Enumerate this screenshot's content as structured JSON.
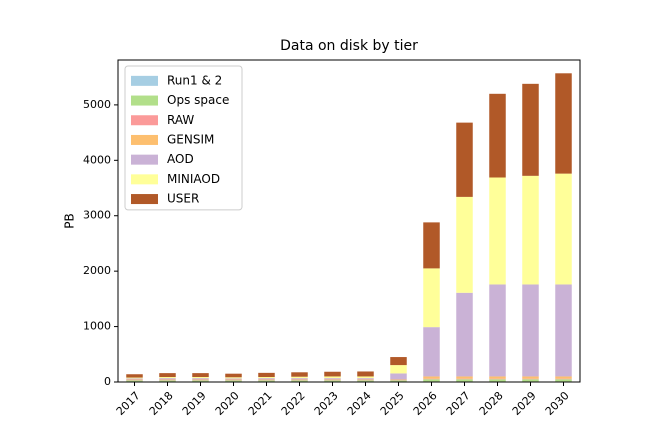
{
  "chart_data": {
    "type": "stacked_bar",
    "title": "Data on disk by tier",
    "ylabel": "PB",
    "categories": [
      "2017",
      "2018",
      "2019",
      "2020",
      "2021",
      "2022",
      "2023",
      "2024",
      "2025",
      "2026",
      "2027",
      "2028",
      "2029",
      "2030"
    ],
    "series": [
      {
        "name": "Run1 & 2",
        "color": "#a6cee3",
        "values": [
          10,
          10,
          10,
          10,
          10,
          10,
          10,
          10,
          10,
          10,
          10,
          10,
          10,
          10
        ]
      },
      {
        "name": "Ops space",
        "color": "#b2df8a",
        "values": [
          20,
          20,
          20,
          20,
          20,
          20,
          20,
          20,
          20,
          40,
          40,
          40,
          40,
          40
        ]
      },
      {
        "name": "RAW",
        "color": "#fb9a99",
        "values": [
          5,
          5,
          5,
          5,
          5,
          5,
          5,
          5,
          5,
          10,
          10,
          10,
          10,
          10
        ]
      },
      {
        "name": "GENSIM",
        "color": "#fdbf6f",
        "values": [
          10,
          10,
          10,
          10,
          10,
          10,
          10,
          10,
          10,
          40,
          40,
          40,
          40,
          40
        ]
      },
      {
        "name": "AOD",
        "color": "#cab2d6",
        "values": [
          20,
          25,
          25,
          20,
          25,
          25,
          25,
          25,
          110,
          890,
          1510,
          1660,
          1660,
          1660
        ]
      },
      {
        "name": "MINIAOD",
        "color": "#ffff99",
        "values": [
          15,
          20,
          20,
          20,
          20,
          25,
          30,
          30,
          150,
          1060,
          1730,
          1930,
          1960,
          2000
        ]
      },
      {
        "name": "USER",
        "color": "#b15928",
        "values": [
          60,
          70,
          70,
          65,
          75,
          80,
          85,
          90,
          145,
          830,
          1340,
          1510,
          1660,
          1810
        ]
      }
    ],
    "ylim": [
      0,
      5810
    ],
    "yticks": [
      0,
      1000,
      2000,
      3000,
      4000,
      5000
    ],
    "legend": "upper left"
  }
}
